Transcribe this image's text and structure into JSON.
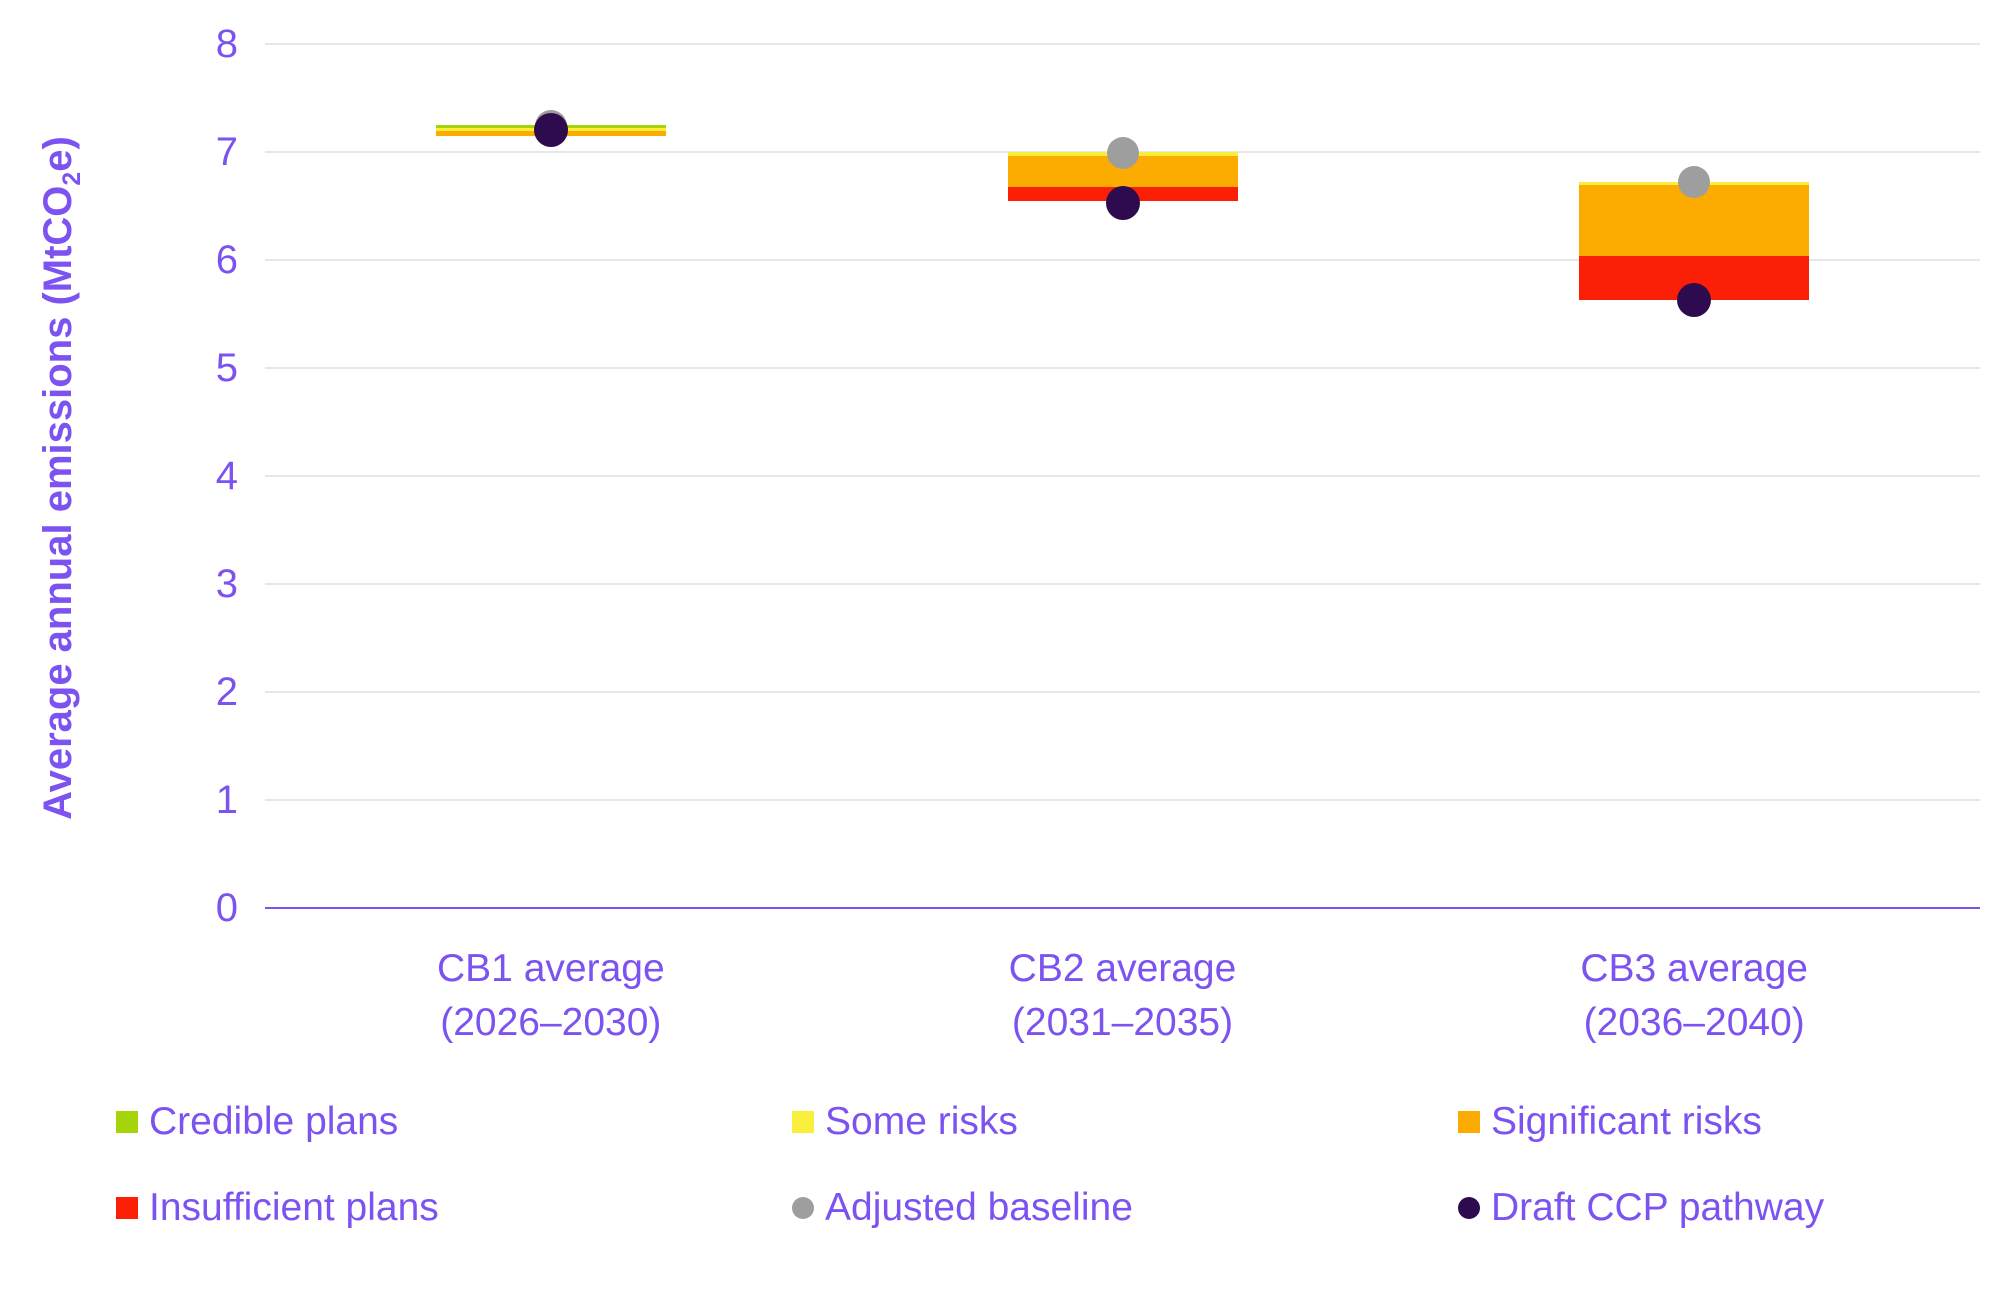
{
  "colors": {
    "text_purple": "#7C52F0",
    "axis_line": "#7C52F0",
    "gridline": "#E7E7E7",
    "credible_plans": "#A6D40B",
    "some_risks": "#F9EE3C",
    "significant_risks": "#FCAC00",
    "insufficient_plans": "#FB2005",
    "adjusted_baseline": "#9E9E9E",
    "draft_ccp_pathway": "#2D0B4E"
  },
  "y_axis": {
    "title_pre": "Average annual emissions (MtCO",
    "title_sub": "2",
    "title_post": "e)",
    "ticks": [
      0,
      1,
      2,
      3,
      4,
      5,
      6,
      7,
      8
    ]
  },
  "legend": {
    "items": [
      {
        "label": "Credible plans",
        "shape": "square",
        "color": "#A6D40B",
        "row": 0,
        "col": 0
      },
      {
        "label": "Some risks",
        "shape": "square",
        "color": "#F9EE3C",
        "row": 0,
        "col": 1
      },
      {
        "label": "Significant risks",
        "shape": "square",
        "color": "#FCAC00",
        "row": 0,
        "col": 2
      },
      {
        "label": "Insufficient plans",
        "shape": "square",
        "color": "#FB2005",
        "row": 1,
        "col": 0
      },
      {
        "label": "Adjusted baseline",
        "shape": "circle",
        "color": "#9E9E9E",
        "row": 1,
        "col": 1
      },
      {
        "label": "Draft CCP pathway",
        "shape": "circle",
        "color": "#2D0B4E",
        "row": 1,
        "col": 2
      }
    ]
  },
  "chart_data": {
    "type": "bar",
    "subtype": "floating-stacked-range-bars-with-point-markers",
    "title": "",
    "xlabel": "",
    "ylabel": "Average annual emissions (MtCO2e)",
    "ylim": [
      0,
      8
    ],
    "grid": "horizontal",
    "legend_position": "bottom",
    "categories": [
      {
        "line1": "CB1 average",
        "line2": "(2026–2030)"
      },
      {
        "line1": "CB2 average",
        "line2": "(2031–2035)"
      },
      {
        "line1": "CB3 average",
        "line2": "(2036–2040)"
      }
    ],
    "series_order_bottom_to_top": [
      "Insufficient plans",
      "Significant risks",
      "Some risks",
      "Credible plans"
    ],
    "bars": [
      {
        "category": "CB1 average (2026–2030)",
        "segments": [
          {
            "series": "Significant risks",
            "from": 7.15,
            "to": 7.19
          },
          {
            "series": "Some risks",
            "from": 7.19,
            "to": 7.22
          },
          {
            "series": "Credible plans",
            "from": 7.22,
            "to": 7.25
          }
        ],
        "adjusted_baseline": 7.24,
        "draft_ccp_pathway": 7.2
      },
      {
        "category": "CB2 average (2031–2035)",
        "segments": [
          {
            "series": "Insufficient plans",
            "from": 6.55,
            "to": 6.68
          },
          {
            "series": "Significant risks",
            "from": 6.68,
            "to": 6.96
          },
          {
            "series": "Some risks",
            "from": 6.96,
            "to": 7.0
          }
        ],
        "adjusted_baseline": 6.99,
        "draft_ccp_pathway": 6.53
      },
      {
        "category": "CB3 average (2036–2040)",
        "segments": [
          {
            "series": "Insufficient plans",
            "from": 5.63,
            "to": 6.04
          },
          {
            "series": "Significant risks",
            "from": 6.04,
            "to": 6.69
          },
          {
            "series": "Some risks",
            "from": 6.69,
            "to": 6.72
          }
        ],
        "adjusted_baseline": 6.72,
        "draft_ccp_pathway": 5.63
      }
    ]
  }
}
